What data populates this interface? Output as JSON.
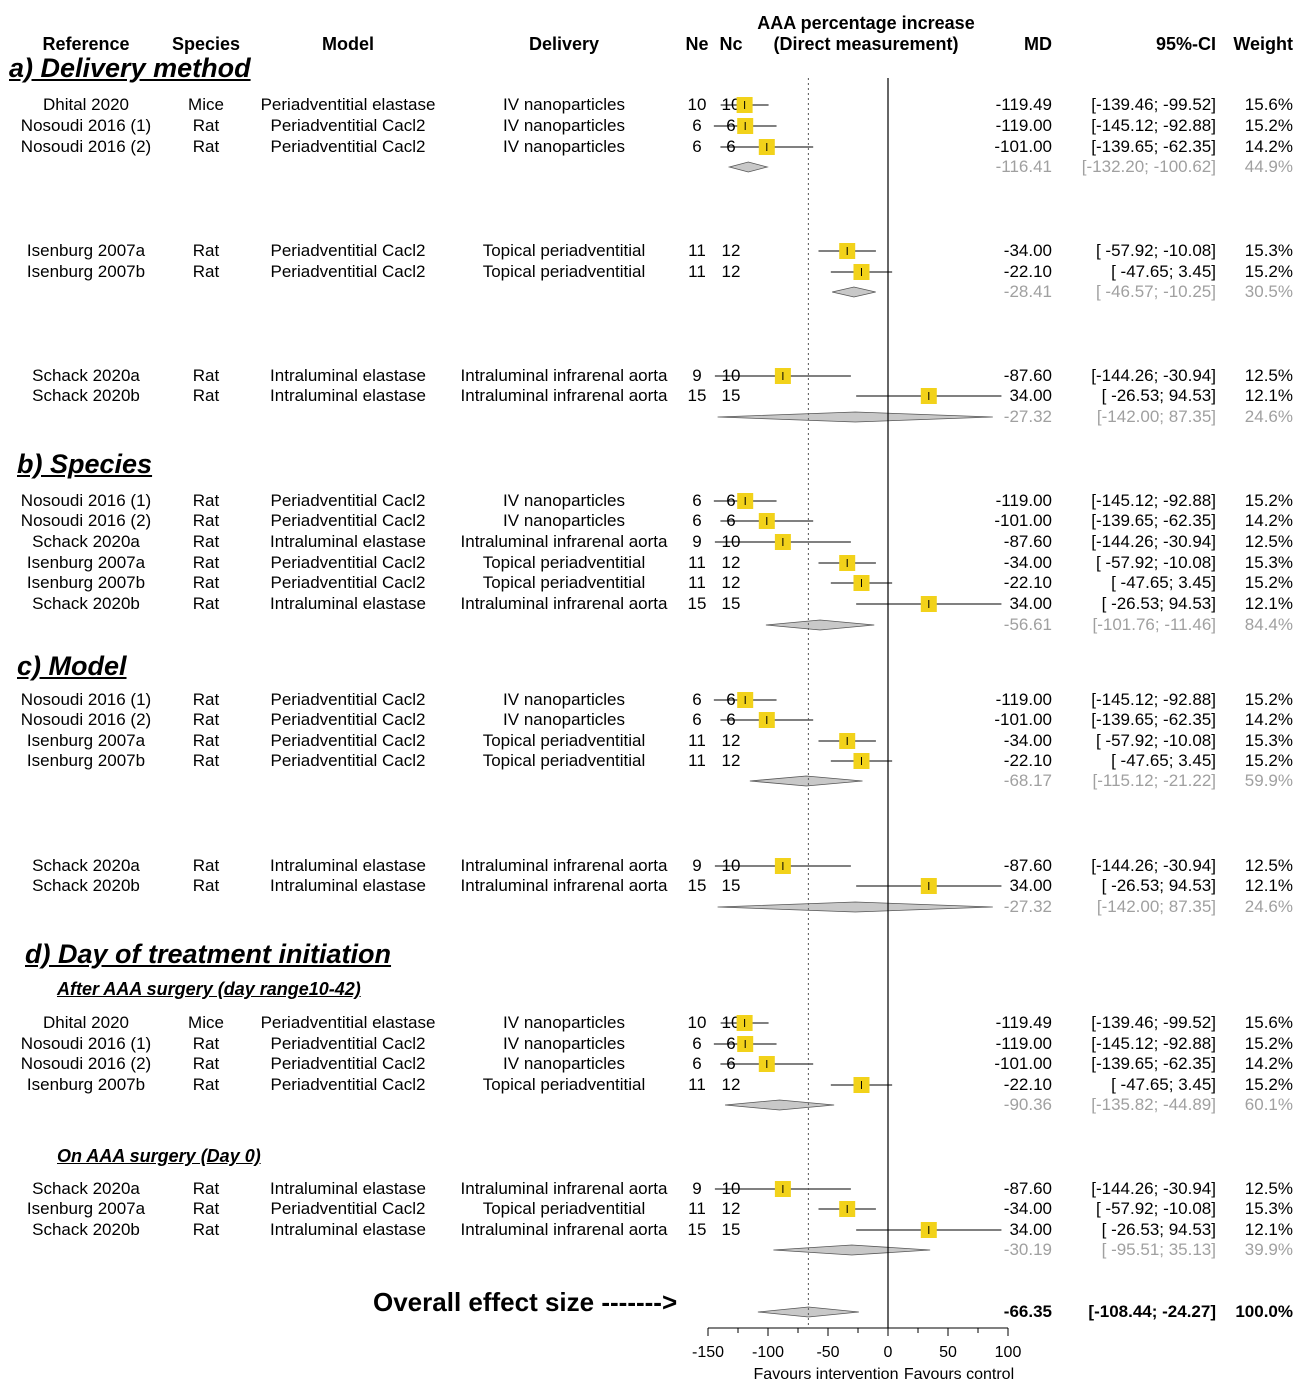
{
  "header": {
    "reference": "Reference",
    "species": "Species",
    "model": "Model",
    "delivery": "Delivery",
    "ne": "Ne",
    "nc": "Nc",
    "title_line1": "AAA percentage increase",
    "title_line2": "(Direct measurement)",
    "md": "MD",
    "ci": "95%-CI",
    "weight": "Weight"
  },
  "overall_label": "Overall effect size ------->",
  "axis": {
    "ticks": [
      -150,
      -100,
      -50,
      0,
      50,
      100
    ],
    "tick_labels": [
      "-150",
      "-100",
      "-50",
      "0",
      "50",
      "100"
    ],
    "left_label": "Favours intervention",
    "right_label": "Favours control"
  },
  "colors": {
    "box": "#f2d21a",
    "diamond": "#c8c8c8",
    "summary_text": "#a0a0a0"
  },
  "chart_data": {
    "type": "forest",
    "xlim": [
      -150,
      100
    ],
    "reference_line": 0,
    "overall_effect_line": -66.35,
    "sections": [
      {
        "title": "a) Delivery method",
        "groups": [
          {
            "studies": [
              {
                "ref": "Dhital 2020",
                "species": "Mice",
                "model": "Periadventitial elastase",
                "delivery": "IV nanoparticles",
                "ne": "10",
                "nc": "10",
                "md": -119.49,
                "lo": -139.46,
                "hi": -99.52,
                "md_text": "-119.49",
                "ci_text": "[-139.46; -99.52]",
                "weight_text": "15.6%"
              },
              {
                "ref": "Nosoudi 2016 (1)",
                "species": "Rat",
                "model": "Periadventitial Cacl2",
                "delivery": "IV nanoparticles",
                "ne": "6",
                "nc": "6",
                "md": -119.0,
                "lo": -145.12,
                "hi": -92.88,
                "md_text": "-119.00",
                "ci_text": "[-145.12; -92.88]",
                "weight_text": "15.2%"
              },
              {
                "ref": "Nosoudi 2016 (2)",
                "species": "Rat",
                "model": "Periadventitial Cacl2",
                "delivery": "IV nanoparticles",
                "ne": "6",
                "nc": "6",
                "md": -101.0,
                "lo": -139.65,
                "hi": -62.35,
                "md_text": "-101.00",
                "ci_text": "[-139.65; -62.35]",
                "weight_text": "14.2%"
              }
            ],
            "summary": {
              "md": -116.41,
              "lo": -132.2,
              "hi": -100.62,
              "md_text": "-116.41",
              "ci_text": "[-132.20; -100.62]",
              "weight_text": "44.9%"
            }
          },
          {
            "studies": [
              {
                "ref": "Isenburg 2007a",
                "species": "Rat",
                "model": "Periadventitial Cacl2",
                "delivery": "Topical periadventitial",
                "ne": "11",
                "nc": "12",
                "md": -34.0,
                "lo": -57.92,
                "hi": -10.08,
                "md_text": "-34.00",
                "ci_text": "[ -57.92; -10.08]",
                "weight_text": "15.3%"
              },
              {
                "ref": "Isenburg 2007b",
                "species": "Rat",
                "model": "Periadventitial Cacl2",
                "delivery": "Topical periadventitial",
                "ne": "11",
                "nc": "12",
                "md": -22.1,
                "lo": -47.65,
                "hi": 3.45,
                "md_text": "-22.10",
                "ci_text": "[ -47.65; 3.45]",
                "weight_text": "15.2%"
              }
            ],
            "summary": {
              "md": -28.41,
              "lo": -46.57,
              "hi": -10.25,
              "md_text": "-28.41",
              "ci_text": "[ -46.57; -10.25]",
              "weight_text": "30.5%"
            }
          },
          {
            "studies": [
              {
                "ref": "Schack 2020a",
                "species": "Rat",
                "model": "Intraluminal elastase",
                "delivery": "Intraluminal infrarenal aorta",
                "ne": "9",
                "nc": "10",
                "md": -87.6,
                "lo": -144.26,
                "hi": -30.94,
                "md_text": "-87.60",
                "ci_text": "[-144.26; -30.94]",
                "weight_text": "12.5%"
              },
              {
                "ref": "Schack 2020b",
                "species": "Rat",
                "model": "Intraluminal elastase",
                "delivery": "Intraluminal infrarenal aorta",
                "ne": "15",
                "nc": "15",
                "md": 34.0,
                "lo": -26.53,
                "hi": 94.53,
                "md_text": "34.00",
                "ci_text": "[ -26.53; 94.53]",
                "weight_text": "12.1%"
              }
            ],
            "summary": {
              "md": -27.32,
              "lo": -142.0,
              "hi": 87.35,
              "md_text": "-27.32",
              "ci_text": "[-142.00; 87.35]",
              "weight_text": "24.6%"
            }
          }
        ]
      },
      {
        "title": "b) Species",
        "groups": [
          {
            "studies": [
              {
                "ref": "Nosoudi 2016 (1)",
                "species": "Rat",
                "model": "Periadventitial Cacl2",
                "delivery": "IV nanoparticles",
                "ne": "6",
                "nc": "6",
                "md": -119.0,
                "lo": -145.12,
                "hi": -92.88,
                "md_text": "-119.00",
                "ci_text": "[-145.12; -92.88]",
                "weight_text": "15.2%"
              },
              {
                "ref": "Nosoudi 2016 (2)",
                "species": "Rat",
                "model": "Periadventitial Cacl2",
                "delivery": "IV nanoparticles",
                "ne": "6",
                "nc": "6",
                "md": -101.0,
                "lo": -139.65,
                "hi": -62.35,
                "md_text": "-101.00",
                "ci_text": "[-139.65; -62.35]",
                "weight_text": "14.2%"
              },
              {
                "ref": "Schack 2020a",
                "species": "Rat",
                "model": "Intraluminal elastase",
                "delivery": "Intraluminal infrarenal aorta",
                "ne": "9",
                "nc": "10",
                "md": -87.6,
                "lo": -144.26,
                "hi": -30.94,
                "md_text": "-87.60",
                "ci_text": "[-144.26; -30.94]",
                "weight_text": "12.5%"
              },
              {
                "ref": "Isenburg 2007a",
                "species": "Rat",
                "model": "Periadventitial Cacl2",
                "delivery": "Topical periadventitial",
                "ne": "11",
                "nc": "12",
                "md": -34.0,
                "lo": -57.92,
                "hi": -10.08,
                "md_text": "-34.00",
                "ci_text": "[ -57.92; -10.08]",
                "weight_text": "15.3%"
              },
              {
                "ref": "Isenburg 2007b",
                "species": "Rat",
                "model": "Periadventitial Cacl2",
                "delivery": "Topical periadventitial",
                "ne": "11",
                "nc": "12",
                "md": -22.1,
                "lo": -47.65,
                "hi": 3.45,
                "md_text": "-22.10",
                "ci_text": "[ -47.65; 3.45]",
                "weight_text": "15.2%"
              },
              {
                "ref": "Schack 2020b",
                "species": "Rat",
                "model": "Intraluminal elastase",
                "delivery": "Intraluminal infrarenal aorta",
                "ne": "15",
                "nc": "15",
                "md": 34.0,
                "lo": -26.53,
                "hi": 94.53,
                "md_text": "34.00",
                "ci_text": "[ -26.53; 94.53]",
                "weight_text": "12.1%"
              }
            ],
            "summary": {
              "md": -56.61,
              "lo": -101.76,
              "hi": -11.46,
              "md_text": "-56.61",
              "ci_text": "[-101.76; -11.46]",
              "weight_text": "84.4%"
            }
          }
        ]
      },
      {
        "title": "c) Model",
        "groups": [
          {
            "studies": [
              {
                "ref": "Nosoudi 2016 (1)",
                "species": "Rat",
                "model": "Periadventitial Cacl2",
                "delivery": "IV nanoparticles",
                "ne": "6",
                "nc": "6",
                "md": -119.0,
                "lo": -145.12,
                "hi": -92.88,
                "md_text": "-119.00",
                "ci_text": "[-145.12; -92.88]",
                "weight_text": "15.2%"
              },
              {
                "ref": "Nosoudi 2016 (2)",
                "species": "Rat",
                "model": "Periadventitial Cacl2",
                "delivery": "IV nanoparticles",
                "ne": "6",
                "nc": "6",
                "md": -101.0,
                "lo": -139.65,
                "hi": -62.35,
                "md_text": "-101.00",
                "ci_text": "[-139.65; -62.35]",
                "weight_text": "14.2%"
              },
              {
                "ref": "Isenburg 2007a",
                "species": "Rat",
                "model": "Periadventitial Cacl2",
                "delivery": "Topical periadventitial",
                "ne": "11",
                "nc": "12",
                "md": -34.0,
                "lo": -57.92,
                "hi": -10.08,
                "md_text": "-34.00",
                "ci_text": "[ -57.92; -10.08]",
                "weight_text": "15.3%"
              },
              {
                "ref": "Isenburg 2007b",
                "species": "Rat",
                "model": "Periadventitial Cacl2",
                "delivery": "Topical periadventitial",
                "ne": "11",
                "nc": "12",
                "md": -22.1,
                "lo": -47.65,
                "hi": 3.45,
                "md_text": "-22.10",
                "ci_text": "[ -47.65; 3.45]",
                "weight_text": "15.2%"
              }
            ],
            "summary": {
              "md": -68.17,
              "lo": -115.12,
              "hi": -21.22,
              "md_text": "-68.17",
              "ci_text": "[-115.12; -21.22]",
              "weight_text": "59.9%"
            }
          },
          {
            "studies": [
              {
                "ref": "Schack 2020a",
                "species": "Rat",
                "model": "Intraluminal elastase",
                "delivery": "Intraluminal infrarenal aorta",
                "ne": "9",
                "nc": "10",
                "md": -87.6,
                "lo": -144.26,
                "hi": -30.94,
                "md_text": "-87.60",
                "ci_text": "[-144.26; -30.94]",
                "weight_text": "12.5%"
              },
              {
                "ref": "Schack 2020b",
                "species": "Rat",
                "model": "Intraluminal elastase",
                "delivery": "Intraluminal infrarenal aorta",
                "ne": "15",
                "nc": "15",
                "md": 34.0,
                "lo": -26.53,
                "hi": 94.53,
                "md_text": "34.00",
                "ci_text": "[ -26.53; 94.53]",
                "weight_text": "12.1%"
              }
            ],
            "summary": {
              "md": -27.32,
              "lo": -142.0,
              "hi": 87.35,
              "md_text": "-27.32",
              "ci_text": "[-142.00; 87.35]",
              "weight_text": "24.6%"
            }
          }
        ]
      },
      {
        "title": "d) Day of treatment initiation",
        "groups": [
          {
            "subtitle": "After AAA surgery (day range10-42)",
            "studies": [
              {
                "ref": "Dhital 2020",
                "species": "Mice",
                "model": "Periadventitial elastase",
                "delivery": "IV nanoparticles",
                "ne": "10",
                "nc": "10",
                "md": -119.49,
                "lo": -139.46,
                "hi": -99.52,
                "md_text": "-119.49",
                "ci_text": "[-139.46; -99.52]",
                "weight_text": "15.6%"
              },
              {
                "ref": "Nosoudi 2016 (1)",
                "species": "Rat",
                "model": "Periadventitial Cacl2",
                "delivery": "IV nanoparticles",
                "ne": "6",
                "nc": "6",
                "md": -119.0,
                "lo": -145.12,
                "hi": -92.88,
                "md_text": "-119.00",
                "ci_text": "[-145.12; -92.88]",
                "weight_text": "15.2%"
              },
              {
                "ref": "Nosoudi 2016 (2)",
                "species": "Rat",
                "model": "Periadventitial Cacl2",
                "delivery": "IV nanoparticles",
                "ne": "6",
                "nc": "6",
                "md": -101.0,
                "lo": -139.65,
                "hi": -62.35,
                "md_text": "-101.00",
                "ci_text": "[-139.65; -62.35]",
                "weight_text": "14.2%"
              },
              {
                "ref": "Isenburg 2007b",
                "species": "Rat",
                "model": "Periadventitial Cacl2",
                "delivery": "Topical periadventitial",
                "ne": "11",
                "nc": "12",
                "md": -22.1,
                "lo": -47.65,
                "hi": 3.45,
                "md_text": "-22.10",
                "ci_text": "[ -47.65; 3.45]",
                "weight_text": "15.2%"
              }
            ],
            "summary": {
              "md": -90.36,
              "lo": -135.82,
              "hi": -44.89,
              "md_text": "-90.36",
              "ci_text": "[-135.82; -44.89]",
              "weight_text": "60.1%"
            }
          },
          {
            "subtitle": "On AAA surgery (Day 0)",
            "studies": [
              {
                "ref": "Schack 2020a",
                "species": "Rat",
                "model": "Intraluminal elastase",
                "delivery": "Intraluminal infrarenal aorta",
                "ne": "9",
                "nc": "10",
                "md": -87.6,
                "lo": -144.26,
                "hi": -30.94,
                "md_text": "-87.60",
                "ci_text": "[-144.26; -30.94]",
                "weight_text": "12.5%"
              },
              {
                "ref": "Isenburg 2007a",
                "species": "Rat",
                "model": "Periadventitial Cacl2",
                "delivery": "Topical periadventitial",
                "ne": "11",
                "nc": "12",
                "md": -34.0,
                "lo": -57.92,
                "hi": -10.08,
                "md_text": "-34.00",
                "ci_text": "[ -57.92; -10.08]",
                "weight_text": "15.3%"
              },
              {
                "ref": "Schack 2020b",
                "species": "Rat",
                "model": "Intraluminal elastase",
                "delivery": "Intraluminal infrarenal aorta",
                "ne": "15",
                "nc": "15",
                "md": 34.0,
                "lo": -26.53,
                "hi": 94.53,
                "md_text": "34.00",
                "ci_text": "[ -26.53; 94.53]",
                "weight_text": "12.1%"
              }
            ],
            "summary": {
              "md": -30.19,
              "lo": -95.51,
              "hi": 35.13,
              "md_text": "-30.19",
              "ci_text": "[ -95.51; 35.13]",
              "weight_text": "39.9%"
            }
          }
        ]
      }
    ],
    "overall": {
      "md": -66.35,
      "lo": -108.44,
      "hi": -24.27,
      "md_text": "-66.35",
      "ci_text": "[-108.44; -24.27]",
      "weight_text": "100.0%"
    }
  }
}
